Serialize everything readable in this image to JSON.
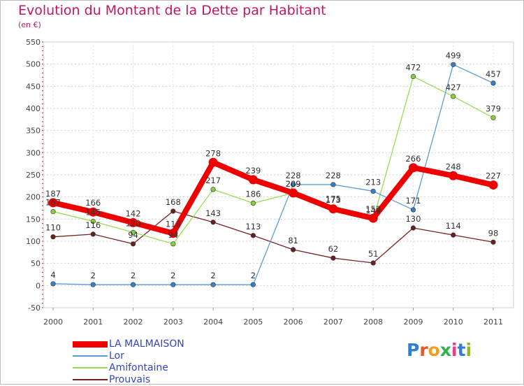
{
  "title": "Evolution du Montant de la Dette par Habitant",
  "subtitle": "(en €)",
  "chart_data": {
    "type": "line",
    "title": "Evolution du Montant de la Dette par Habitant",
    "subtitle": "(en €)",
    "xlabel": "",
    "ylabel": "",
    "categories": [
      "2000",
      "2001",
      "2002",
      "2003",
      "2004",
      "2005",
      "2006",
      "2007",
      "2008",
      "2009",
      "2010",
      "2011"
    ],
    "ylim": [
      -50,
      550
    ],
    "yticks": [
      -50,
      0,
      50,
      100,
      150,
      200,
      250,
      300,
      350,
      400,
      450,
      500,
      550
    ],
    "grid": "horizontal",
    "legend_position": "bottom-left",
    "series": [
      {
        "name": "LA MALMAISON",
        "values": [
          187,
          166,
          142,
          118,
          278,
          239,
          209,
          173,
          152,
          266,
          248,
          227
        ],
        "color": "#ee0000",
        "marker": "#ee0000"
      },
      {
        "name": "Lor",
        "values": [
          4,
          2,
          2,
          2,
          2,
          2,
          228,
          228,
          213,
          171,
          499,
          457
        ],
        "color": "#5b9bd5",
        "marker": "#3a7fc4"
      },
      {
        "name": "Amifontaine",
        "values": [
          167,
          145,
          120,
          94,
          217,
          186,
          209,
          175,
          149,
          472,
          427,
          379
        ],
        "color": "#99dd55",
        "marker": "#88cc44"
      },
      {
        "name": "Prouvais",
        "values": [
          110,
          116,
          94,
          168,
          143,
          113,
          81,
          62,
          51,
          130,
          114,
          98
        ],
        "color": "#772222",
        "marker": "#662222"
      }
    ]
  },
  "legend": [
    {
      "label": "LA MALMAISON"
    },
    {
      "label": "Lor"
    },
    {
      "label": "Amifontaine"
    },
    {
      "label": "Prouvais"
    }
  ],
  "logo": {
    "text": "Proxiti",
    "colors": [
      "#2f7fd8",
      "#e8572a",
      "#f0a020",
      "#2fb34a",
      "#e63c8a",
      "#2f7fd8",
      "#8ab92d"
    ]
  }
}
